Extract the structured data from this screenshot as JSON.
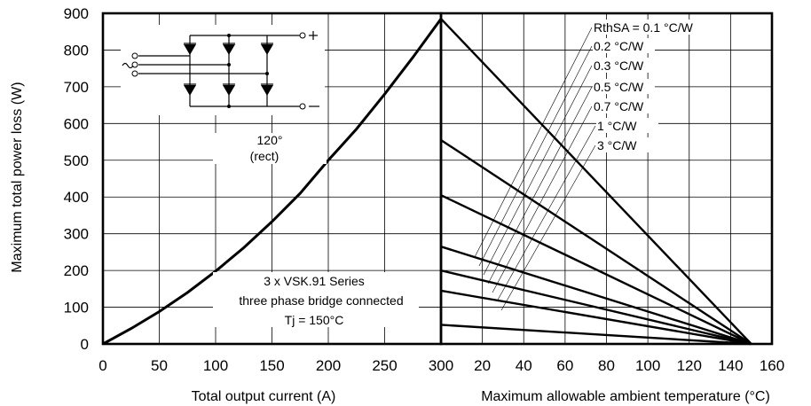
{
  "chart_data": [
    {
      "type": "line",
      "title": "",
      "xlabel": "Total output current (A)",
      "ylabel": "Maximum total power loss (W)",
      "xlim": [
        0,
        300
      ],
      "ylim": [
        0,
        900
      ],
      "xticks": [
        "0",
        "50",
        "100",
        "150",
        "200",
        "250",
        "300"
      ],
      "yticks": [
        "0",
        "100",
        "200",
        "300",
        "400",
        "500",
        "600",
        "700",
        "800",
        "900"
      ],
      "grid": true,
      "series": [
        {
          "name": "120° (rect)",
          "x": [
            0,
            25,
            50,
            75,
            100,
            125,
            150,
            175,
            200,
            225,
            250,
            275,
            300
          ],
          "y": [
            0,
            42,
            88,
            140,
            198,
            262,
            333,
            410,
            500,
            585,
            680,
            780,
            885
          ]
        }
      ],
      "annotations": {
        "conduction_label_1": "120°",
        "conduction_label_2": "(rect)",
        "device_line_1": "3 x VSK.91 Series",
        "device_line_2": "three phase bridge connected",
        "device_line_3": "Tj = 150°C"
      }
    },
    {
      "type": "line",
      "title": "",
      "xlabel": "Maximum allowable ambient temperature (°C)",
      "ylabel": "",
      "xlim": [
        0,
        160
      ],
      "ylim": [
        0,
        900
      ],
      "xticks": [
        "20",
        "40",
        "60",
        "80",
        "100",
        "120",
        "140",
        "160"
      ],
      "grid": true,
      "series": [
        {
          "name": "RthSA = 0.1 °C/W",
          "x": [
            0,
            150
          ],
          "y": [
            885,
            0
          ]
        },
        {
          "name": "0.2 °C/W",
          "x": [
            0,
            150
          ],
          "y": [
            555,
            0
          ]
        },
        {
          "name": "0.3 °C/W",
          "x": [
            0,
            150
          ],
          "y": [
            405,
            0
          ]
        },
        {
          "name": "0.5 °C/W",
          "x": [
            0,
            150
          ],
          "y": [
            265,
            0
          ]
        },
        {
          "name": "0.7 °C/W",
          "x": [
            0,
            150
          ],
          "y": [
            200,
            0
          ]
        },
        {
          "name": "1 °C/W",
          "x": [
            0,
            150
          ],
          "y": [
            145,
            0
          ]
        },
        {
          "name": "3 °C/W",
          "x": [
            0,
            150
          ],
          "y": [
            52,
            0
          ]
        }
      ],
      "legend": "top-right"
    }
  ]
}
